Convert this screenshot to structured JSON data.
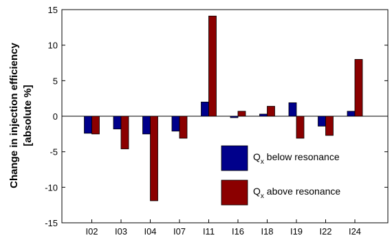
{
  "chart_data": {
    "type": "bar",
    "categories": [
      "I02",
      "I03",
      "I04",
      "I07",
      "I11",
      "I16",
      "I18",
      "I19",
      "I22",
      "I24"
    ],
    "series": [
      {
        "name": "Q_x below resonance",
        "legend_main": "Q",
        "legend_sub": "x",
        "legend_rest": " below resonance",
        "color": "#00008b",
        "values": [
          -2.4,
          -1.8,
          -2.5,
          -2.1,
          2.0,
          -0.2,
          0.3,
          1.9,
          -1.4,
          0.7
        ]
      },
      {
        "name": "Q_x above resonance",
        "legend_main": "Q",
        "legend_sub": "x",
        "legend_rest": " above resonance",
        "color": "#8b0000",
        "values": [
          -2.5,
          -4.6,
          -11.9,
          -3.1,
          14.1,
          0.7,
          1.4,
          -3.1,
          -2.7,
          8.0
        ]
      }
    ],
    "ylabel_line1": "Change in injection efficiency",
    "ylabel_line2": "[absolute %]",
    "ylim": [
      -15,
      15
    ],
    "yticks": [
      -15,
      -10,
      -5,
      0,
      5,
      10,
      15
    ],
    "grid": false,
    "legend_position": "lower-right"
  }
}
